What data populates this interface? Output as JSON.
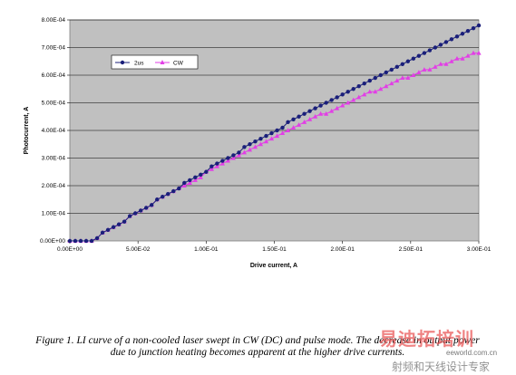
{
  "chart_data": {
    "type": "line",
    "xlabel": "Drive current, A",
    "ylabel": "Photocurrent, A",
    "xlim": [
      0,
      0.3
    ],
    "ylim": [
      0,
      0.0008
    ],
    "x_ticks": [
      "0.00E+00",
      "5.00E-02",
      "1.00E-01",
      "1.50E-01",
      "2.00E-01",
      "2.50E-01",
      "3.00E-01"
    ],
    "y_ticks": [
      "0.00E+00",
      "1.00E-04",
      "2.00E-04",
      "3.00E-04",
      "4.00E-04",
      "5.00E-04",
      "6.00E-04",
      "7.00E-04",
      "8.00E-04"
    ],
    "grid": "horizontal",
    "legend_position": "top-left",
    "series": [
      {
        "name": "2us",
        "color": "#1a1f7a",
        "marker": "circle",
        "x": [
          0.0,
          0.004,
          0.008,
          0.012,
          0.016,
          0.02,
          0.024,
          0.028,
          0.032,
          0.036,
          0.04,
          0.044,
          0.048,
          0.052,
          0.056,
          0.06,
          0.064,
          0.068,
          0.072,
          0.076,
          0.08,
          0.084,
          0.088,
          0.092,
          0.096,
          0.1,
          0.104,
          0.108,
          0.112,
          0.116,
          0.12,
          0.124,
          0.128,
          0.132,
          0.136,
          0.14,
          0.144,
          0.148,
          0.152,
          0.156,
          0.16,
          0.164,
          0.168,
          0.172,
          0.176,
          0.18,
          0.184,
          0.188,
          0.192,
          0.196,
          0.2,
          0.204,
          0.208,
          0.212,
          0.216,
          0.22,
          0.224,
          0.228,
          0.232,
          0.236,
          0.24,
          0.244,
          0.248,
          0.252,
          0.256,
          0.26,
          0.264,
          0.268,
          0.272,
          0.276,
          0.28,
          0.284,
          0.288,
          0.292,
          0.296,
          0.3
        ],
        "y": [
          0.0,
          0.0,
          0.0,
          0.0,
          0.0,
          1e-05,
          3e-05,
          4e-05,
          5e-05,
          6e-05,
          7e-05,
          9e-05,
          0.0001,
          0.00011,
          0.00012,
          0.00013,
          0.00015,
          0.00016,
          0.00017,
          0.00018,
          0.00019,
          0.00021,
          0.00022,
          0.00023,
          0.00024,
          0.00025,
          0.00027,
          0.00028,
          0.00029,
          0.0003,
          0.00031,
          0.00032,
          0.00034,
          0.00035,
          0.00036,
          0.00037,
          0.00038,
          0.00039,
          0.0004,
          0.00041,
          0.00043,
          0.00044,
          0.00045,
          0.00046,
          0.00047,
          0.00048,
          0.00049,
          0.0005,
          0.00051,
          0.00052,
          0.00053,
          0.00054,
          0.00055,
          0.00056,
          0.00057,
          0.00058,
          0.00059,
          0.0006,
          0.00061,
          0.00062,
          0.00063,
          0.00064,
          0.00065,
          0.00066,
          0.00067,
          0.00068,
          0.00069,
          0.0007,
          0.00071,
          0.00072,
          0.00073,
          0.00074,
          0.00075,
          0.00076,
          0.00077,
          0.00078
        ]
      },
      {
        "name": "CW",
        "color": "#e23ee6",
        "marker": "triangle",
        "x": [
          0.0,
          0.004,
          0.008,
          0.012,
          0.016,
          0.02,
          0.024,
          0.028,
          0.032,
          0.036,
          0.04,
          0.044,
          0.048,
          0.052,
          0.056,
          0.06,
          0.064,
          0.068,
          0.072,
          0.076,
          0.08,
          0.084,
          0.088,
          0.092,
          0.096,
          0.1,
          0.104,
          0.108,
          0.112,
          0.116,
          0.12,
          0.124,
          0.128,
          0.132,
          0.136,
          0.14,
          0.144,
          0.148,
          0.152,
          0.156,
          0.16,
          0.164,
          0.168,
          0.172,
          0.176,
          0.18,
          0.184,
          0.188,
          0.192,
          0.196,
          0.2,
          0.204,
          0.208,
          0.212,
          0.216,
          0.22,
          0.224,
          0.228,
          0.232,
          0.236,
          0.24,
          0.244,
          0.248,
          0.252,
          0.256,
          0.26,
          0.264,
          0.268,
          0.272,
          0.276,
          0.28,
          0.284,
          0.288,
          0.292,
          0.296,
          0.3
        ],
        "y": [
          0.0,
          0.0,
          0.0,
          0.0,
          0.0,
          1e-05,
          3e-05,
          4e-05,
          5e-05,
          6e-05,
          7e-05,
          9e-05,
          0.0001,
          0.00011,
          0.00012,
          0.00013,
          0.00015,
          0.00016,
          0.00017,
          0.00018,
          0.00019,
          0.0002,
          0.00021,
          0.00022,
          0.00023,
          0.00025,
          0.00026,
          0.00027,
          0.00028,
          0.00029,
          0.0003,
          0.00031,
          0.00032,
          0.00033,
          0.00034,
          0.00035,
          0.00036,
          0.00037,
          0.00038,
          0.00039,
          0.0004,
          0.00041,
          0.00042,
          0.00043,
          0.00044,
          0.00045,
          0.00046,
          0.00046,
          0.00047,
          0.00048,
          0.00049,
          0.0005,
          0.00051,
          0.00052,
          0.00053,
          0.00054,
          0.00054,
          0.00055,
          0.00056,
          0.00057,
          0.00058,
          0.00059,
          0.00059,
          0.0006,
          0.00061,
          0.00062,
          0.00062,
          0.00063,
          0.00064,
          0.00064,
          0.00065,
          0.00066,
          0.00066,
          0.00067,
          0.00068,
          0.00068
        ]
      }
    ]
  },
  "caption": {
    "line1": "Figure 1. LI curve of a non-cooled laser swept in CW (DC) and pulse mode. The decrease in output power",
    "line2": "due to junction heating becomes apparent at the higher drive currents."
  },
  "watermark": {
    "brand": "易迪拓培训",
    "url": "eeworld.com.cn",
    "subtitle": "射频和天线设计专家"
  },
  "colors": {
    "plot_background": "#c0c0c0",
    "grid": "#000000"
  }
}
